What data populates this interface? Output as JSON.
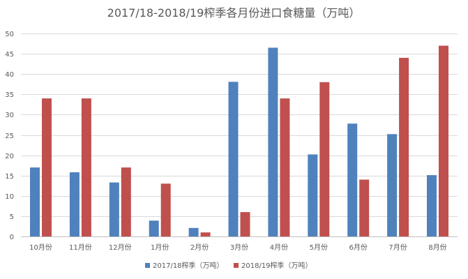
{
  "chart_data": {
    "type": "bar",
    "title": "2017/18-2018/19榨季各月份进口食糖量（万吨）",
    "xlabel": "",
    "ylabel": "",
    "categories": [
      "10月份",
      "11月份",
      "12月份",
      "1月份",
      "2月份",
      "3月份",
      "4月份",
      "5月份",
      "6月份",
      "7月份",
      "8月份"
    ],
    "series": [
      {
        "name": "2017/18榨季（万吨）",
        "color": "#4f81bd",
        "values": [
          17,
          15.8,
          13.3,
          3.9,
          2.1,
          38.1,
          46.5,
          20.2,
          27.8,
          25.2,
          15.1
        ]
      },
      {
        "name": "2018/19榨季（万吨）",
        "color": "#c0504d",
        "values": [
          34,
          34,
          17,
          13,
          1,
          6,
          34,
          38,
          14,
          44,
          47
        ]
      }
    ],
    "ylim": [
      0,
      50
    ],
    "yticks": [
      "0",
      "5",
      "10",
      "15",
      "20",
      "25",
      "30",
      "35",
      "40",
      "45",
      "50"
    ],
    "grid": true,
    "legend_position": "bottom"
  }
}
